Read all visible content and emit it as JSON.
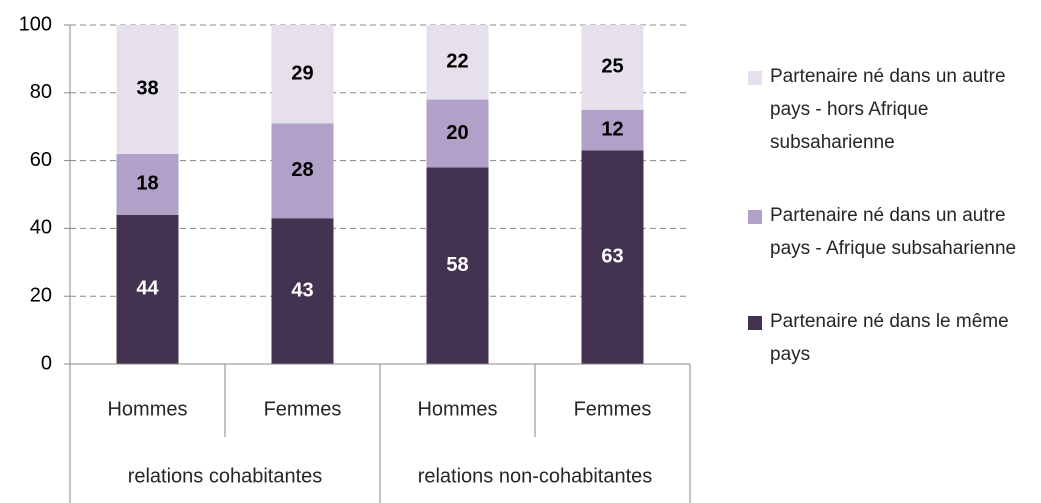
{
  "chart_data": {
    "type": "stacked_bar",
    "categories": [
      "Hommes",
      "Femmes",
      "Hommes",
      "Femmes"
    ],
    "groups": [
      {
        "name": "relations cohabitantes",
        "span": 2
      },
      {
        "name": "relations non-cohabitantes",
        "span": 2
      }
    ],
    "series": [
      {
        "name": "Partenaire né dans le même pays",
        "color": "#433350",
        "label_color": "#ffffff",
        "values": [
          44,
          43,
          58,
          63
        ]
      },
      {
        "name": "Partenaire né dans un autre pays - Afrique subsaharienne",
        "color": "#b1a0c7",
        "label_color": "#000000",
        "values": [
          18,
          28,
          20,
          12
        ]
      },
      {
        "name": "Partenaire né dans un autre pays - hors Afrique subsaharienne",
        "color": "#e5e0ec",
        "label_color": "#000000",
        "values": [
          38,
          29,
          22,
          25
        ]
      }
    ],
    "ylim": [
      0,
      100
    ],
    "yticks": [
      0,
      20,
      40,
      60,
      80,
      100
    ],
    "grid": true,
    "legend": "right"
  }
}
